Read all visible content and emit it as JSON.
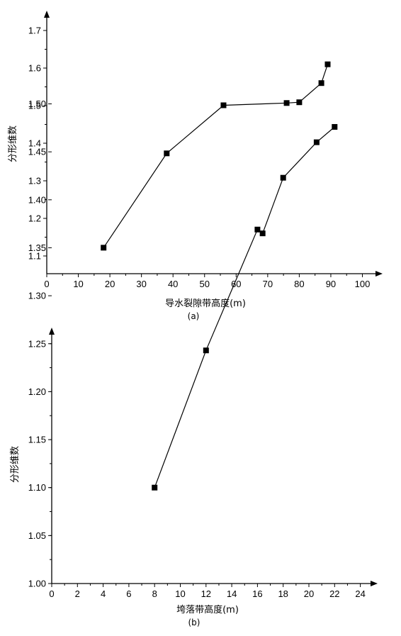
{
  "chart_data": [
    {
      "type": "line",
      "panel_label": "(a)",
      "xlabel": "导水裂隙带高度(m)",
      "ylabel": "分形维数",
      "xlim": [
        0,
        100
      ],
      "ylim": [
        1.05,
        1.75
      ],
      "x_ticks": [
        "0",
        "10",
        "20",
        "30",
        "40",
        "50",
        "60",
        "70",
        "80",
        "90",
        "100"
      ],
      "y_ticks": [
        "1.1",
        "1.2",
        "1.3",
        "1.4",
        "1.5",
        "1.6",
        "1.7"
      ],
      "series": [
        {
          "marker": "square",
          "color": "#000000",
          "points": [
            {
              "x": 18,
              "y": 1.122
            },
            {
              "x": 38,
              "y": 1.373
            },
            {
              "x": 56,
              "y": 1.501
            },
            {
              "x": 76,
              "y": 1.507
            },
            {
              "x": 80,
              "y": 1.509
            },
            {
              "x": 87,
              "y": 1.56
            },
            {
              "x": 89,
              "y": 1.61
            }
          ]
        }
      ],
      "grid": false
    },
    {
      "type": "line",
      "panel_label": "(b)",
      "xlabel": "垮落带高度(m)",
      "ylabel": "分形维数",
      "xlim": [
        0,
        25
      ],
      "ylim": [
        1.0,
        1.52
      ],
      "x_ticks": [
        "0",
        "2",
        "4",
        "6",
        "8",
        "10",
        "12",
        "14",
        "16",
        "18",
        "20",
        "22",
        "24"
      ],
      "y_ticks": [
        "1.00",
        "1.05",
        "1.10",
        "1.15",
        "1.20",
        "1.25",
        "1.30",
        "1.35",
        "1.40",
        "1.45",
        "1.50"
      ],
      "series": [
        {
          "marker": "square",
          "color": "#000000",
          "points": [
            {
              "x": 8,
              "y": 1.1
            },
            {
              "x": 12,
              "y": 1.243
            },
            {
              "x": 16,
              "y": 1.369
            },
            {
              "x": 16.4,
              "y": 1.365
            },
            {
              "x": 18,
              "y": 1.423
            },
            {
              "x": 20.6,
              "y": 1.46
            },
            {
              "x": 22,
              "y": 1.476
            }
          ]
        }
      ],
      "grid": false
    }
  ]
}
